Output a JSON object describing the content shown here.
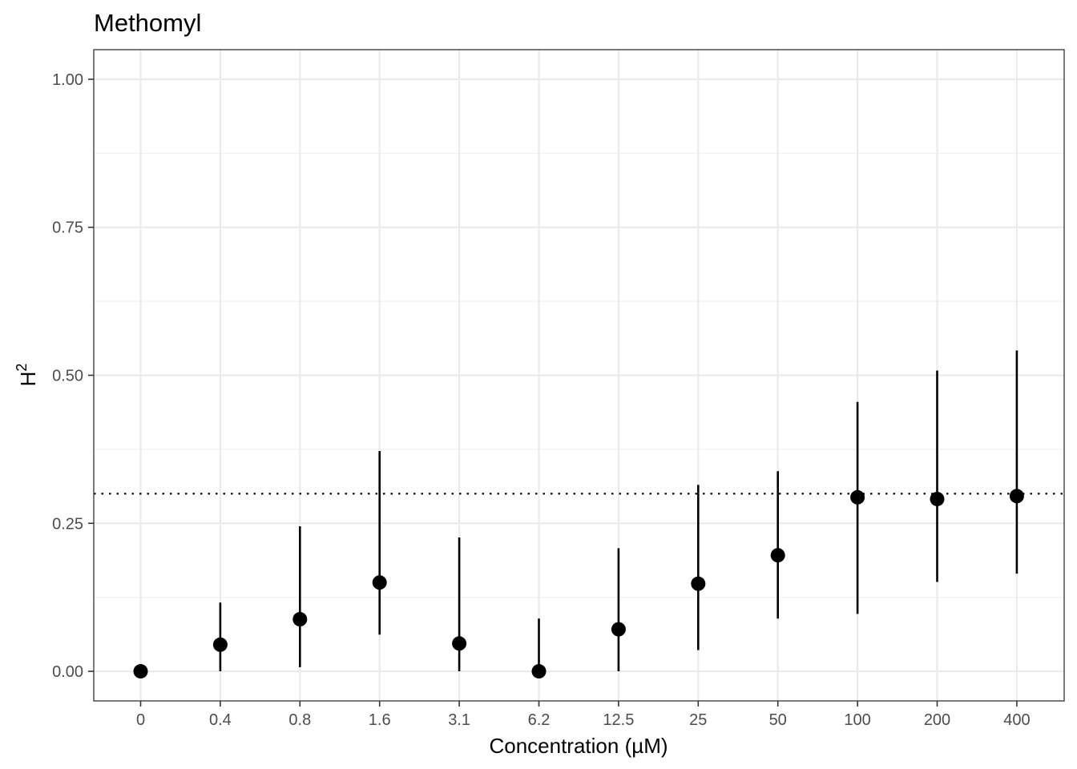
{
  "chart_data": {
    "type": "scatter",
    "title": "Methomyl",
    "xlabel": "Concentration (µM)",
    "ylabel_base": "H",
    "ylabel_sup": "2",
    "categories": [
      "0",
      "0.4",
      "0.8",
      "1.6",
      "3.1",
      "6.2",
      "12.5",
      "25",
      "50",
      "100",
      "200",
      "400"
    ],
    "values": [
      0.0,
      0.045,
      0.088,
      0.15,
      0.047,
      0.0,
      0.071,
      0.148,
      0.196,
      0.294,
      0.291,
      0.296
    ],
    "lower": [
      0.0,
      0.0,
      0.007,
      0.062,
      0.0,
      0.0,
      0.0,
      0.036,
      0.089,
      0.097,
      0.151,
      0.165
    ],
    "upper": [
      0.0,
      0.116,
      0.245,
      0.372,
      0.226,
      0.089,
      0.208,
      0.315,
      0.338,
      0.455,
      0.508,
      0.542
    ],
    "yticks": [
      "0.00",
      "0.25",
      "0.50",
      "0.75",
      "1.00"
    ],
    "ytick_values": [
      0,
      0.25,
      0.5,
      0.75,
      1.0
    ],
    "ylim": [
      -0.05,
      1.05
    ],
    "reference_line": 0.3,
    "grid": true
  }
}
